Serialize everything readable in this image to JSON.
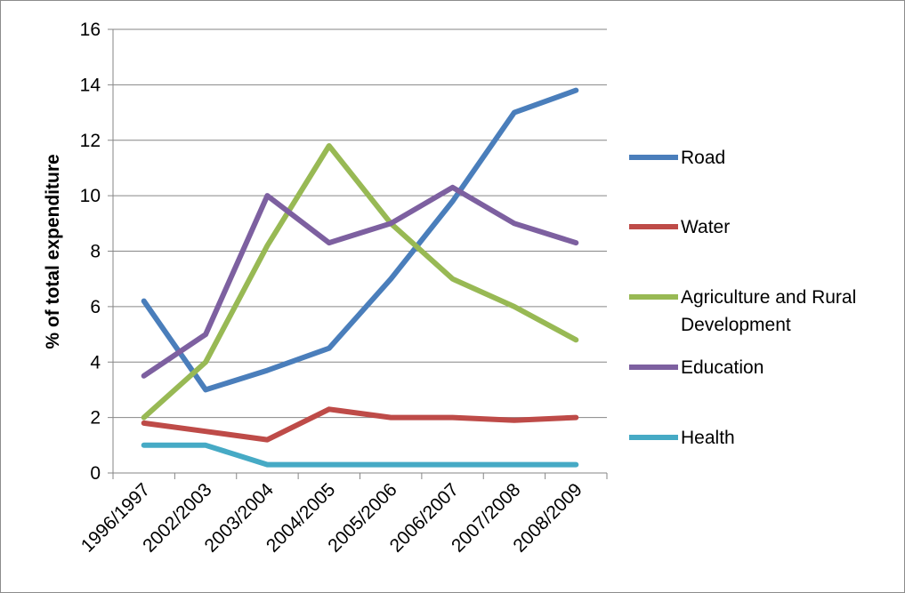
{
  "chart_data": {
    "type": "line",
    "title": "",
    "xlabel": "",
    "ylabel": "% of total expenditure",
    "ylim": [
      0,
      16
    ],
    "yticks": [
      0,
      2,
      4,
      6,
      8,
      10,
      12,
      14,
      16
    ],
    "grid": "horizontal",
    "legend_position": "right",
    "categories": [
      "1996/1997",
      "2002/2003",
      "2003/2004",
      "2004/2005",
      "2005/2006",
      "2006/2007",
      "2007/2008",
      "2008/2009"
    ],
    "series": [
      {
        "name": "Road",
        "color": "#4a7ebb",
        "values": [
          6.2,
          3.0,
          3.7,
          4.5,
          7.0,
          9.8,
          13.0,
          13.8
        ]
      },
      {
        "name": "Water",
        "color": "#be4b48",
        "values": [
          1.8,
          1.5,
          1.2,
          2.3,
          2.0,
          2.0,
          1.9,
          2.0
        ]
      },
      {
        "name": "Agriculture and Rural Development",
        "legend_lines": [
          "Agriculture and Rural",
          "Development"
        ],
        "color": "#98b954",
        "values": [
          2.0,
          4.0,
          8.2,
          11.8,
          9.0,
          7.0,
          6.0,
          4.8
        ]
      },
      {
        "name": "Education",
        "color": "#7d60a0",
        "values": [
          3.5,
          5.0,
          10.0,
          8.3,
          9.0,
          10.3,
          9.0,
          8.3
        ]
      },
      {
        "name": "Health",
        "color": "#46aac5",
        "values": [
          1.0,
          1.0,
          0.3,
          0.3,
          0.3,
          0.3,
          0.3,
          0.3
        ]
      }
    ]
  }
}
